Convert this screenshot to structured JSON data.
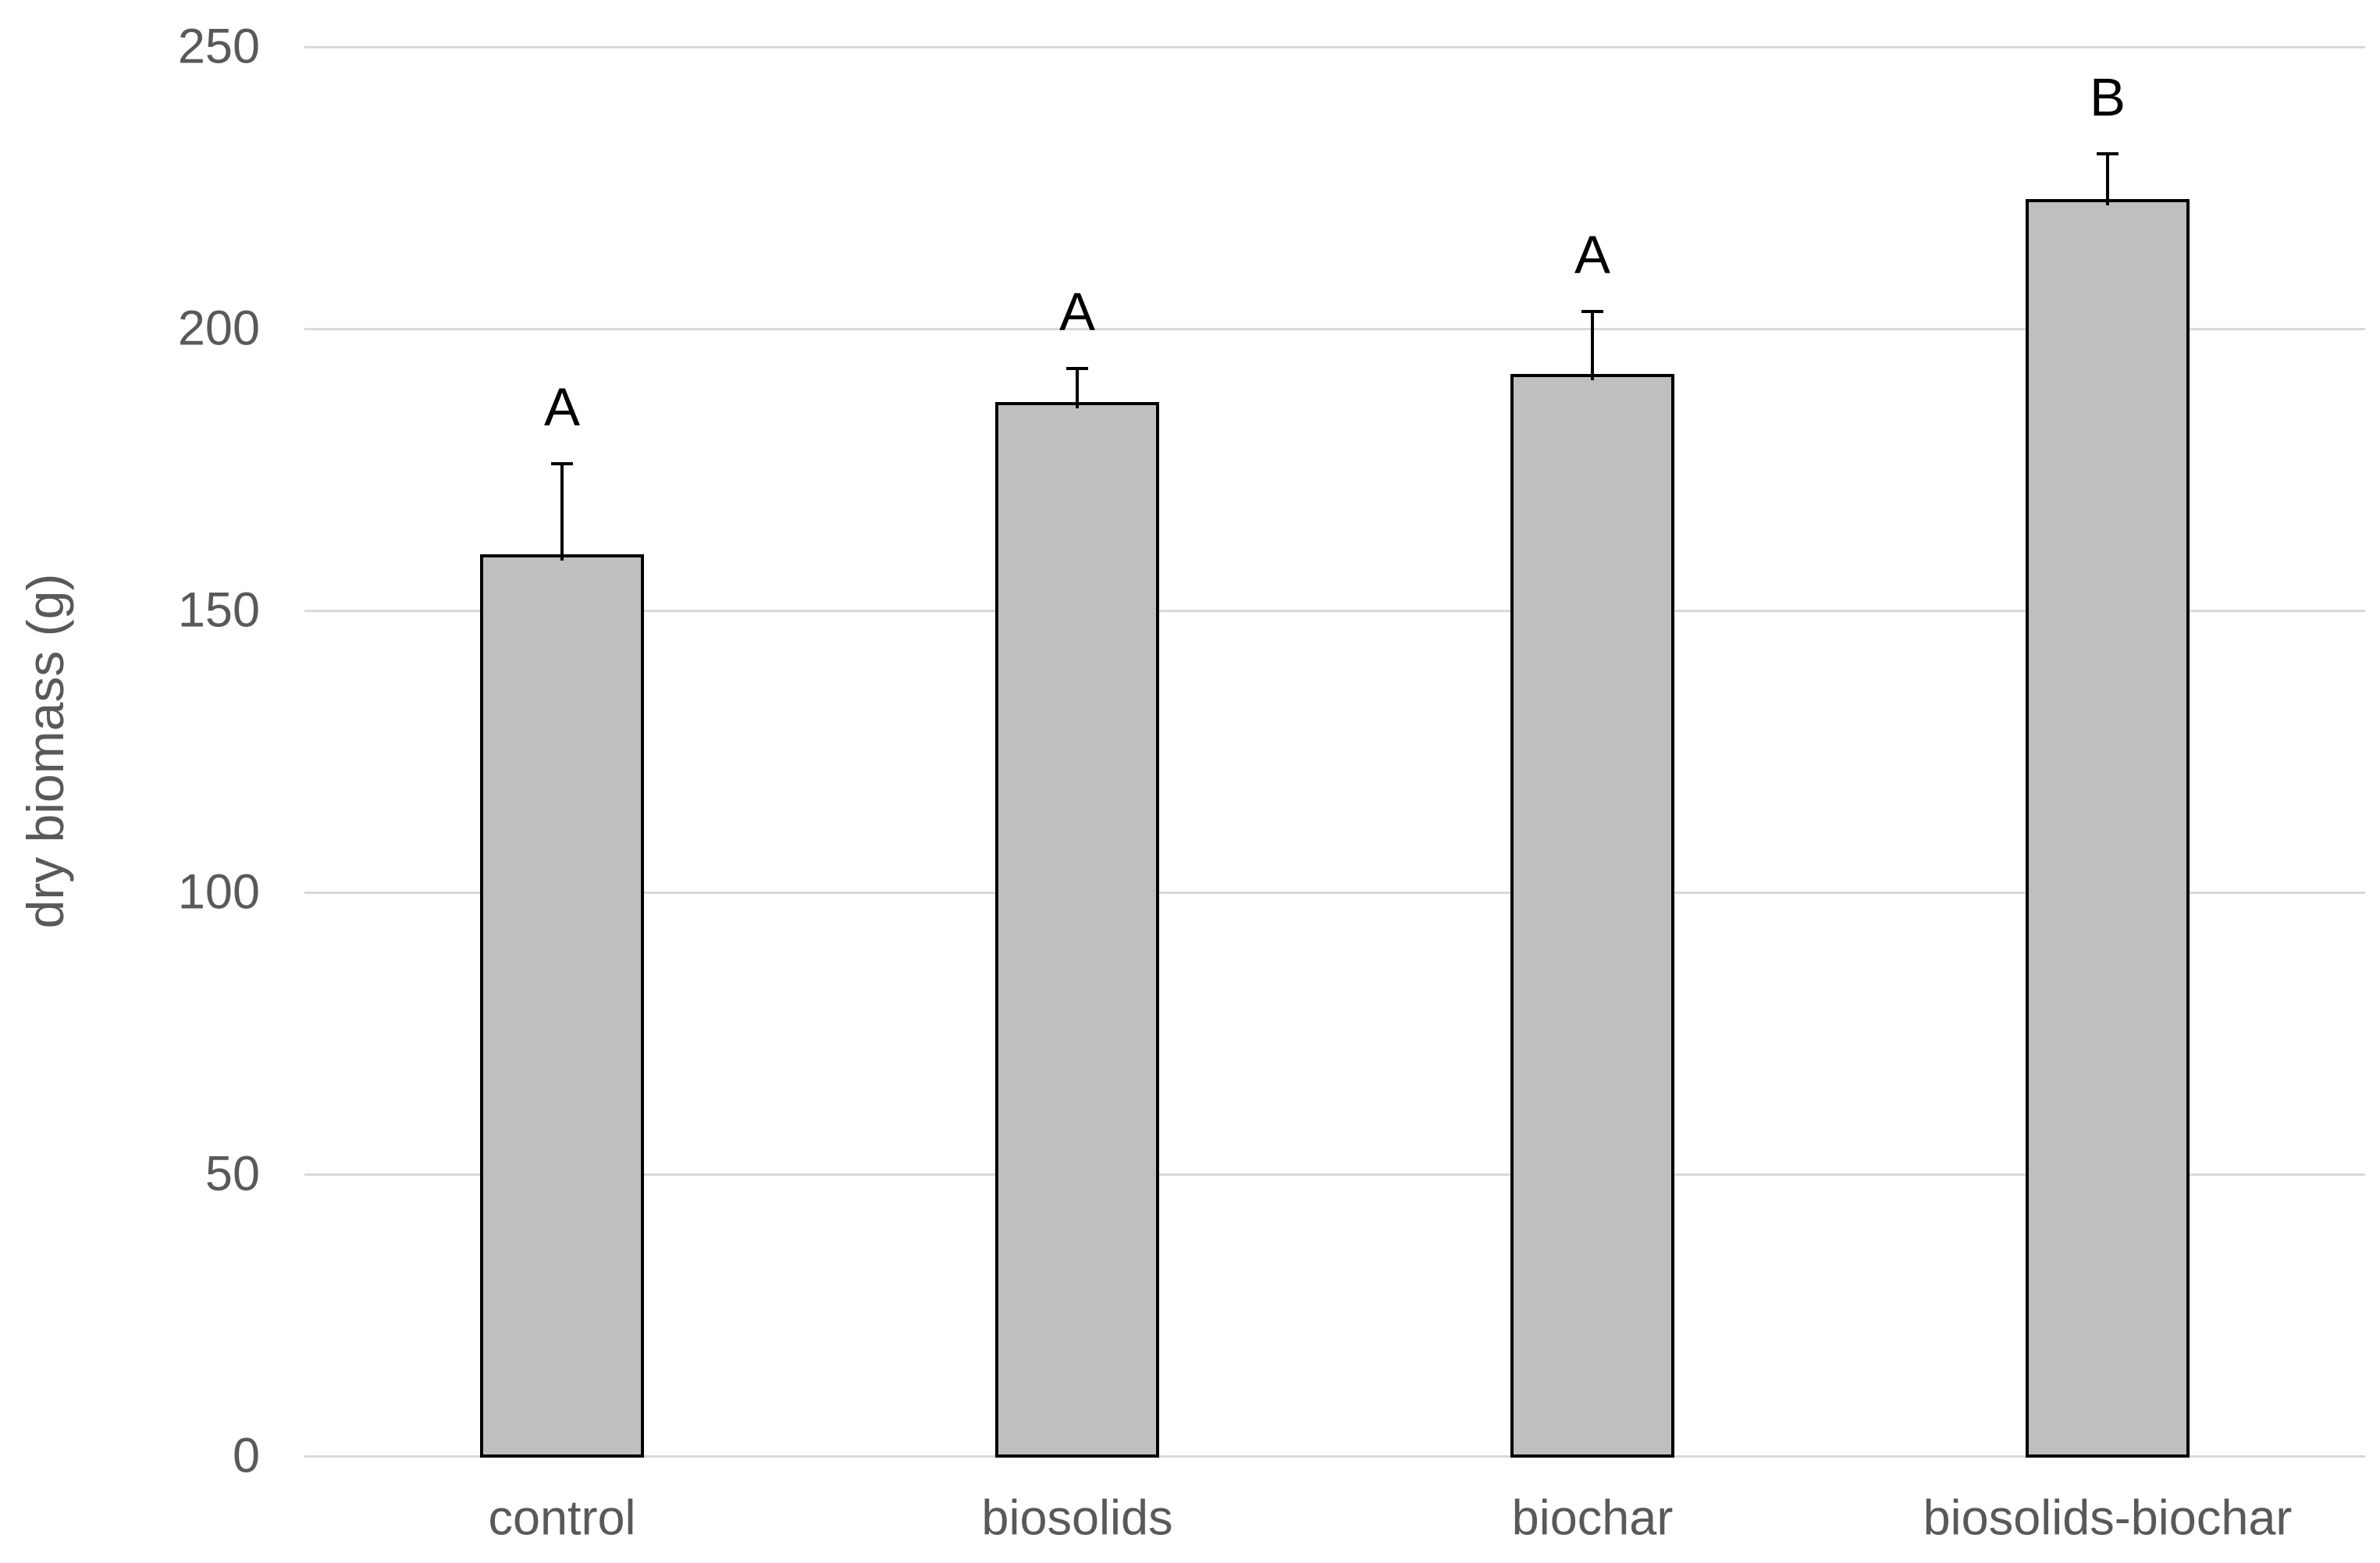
{
  "chart_data": {
    "type": "bar",
    "title": "",
    "categories": [
      "control",
      "biosolids",
      "biochar",
      "biosolids-biochar"
    ],
    "values": [
      160,
      187,
      192,
      223
    ],
    "errors_plus": [
      16,
      6,
      11,
      8
    ],
    "significance_letters": [
      "A",
      "A",
      "A",
      "B"
    ],
    "xlabel": "",
    "ylabel": "dry biomass (g)",
    "yticks": [
      0,
      50,
      100,
      150,
      200,
      250
    ],
    "ylim": [
      0,
      250
    ],
    "grid": true,
    "legend_position": "none",
    "colors": {
      "bar_fill": "#BFBFBF",
      "bar_border": "#000000",
      "error_bar": "#000000",
      "gridline": "#D9D9D9",
      "axis_line": "#D9D9D9",
      "tick_label": "#595959",
      "category_label": "#595959",
      "axis_title": "#595959",
      "letter": "#000000",
      "background": "#FFFFFF"
    }
  }
}
